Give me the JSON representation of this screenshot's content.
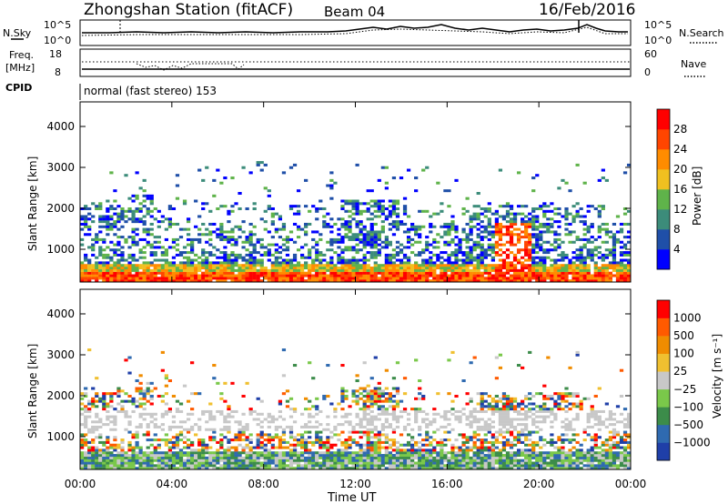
{
  "header": {
    "title": "Zhongshan Station (fitACF)",
    "beam": "Beam 04",
    "date": "16/Feb/2016"
  },
  "noise_panel": {
    "left_label": "N.Sky",
    "right_label": "N.Search",
    "y_ticks_left": [
      "10^5",
      "10^0"
    ],
    "y_ticks_right": [
      "10^5",
      "10^0"
    ]
  },
  "freq_panel": {
    "left_label_top": "Freq.",
    "left_label_unit": "[MHz]",
    "right_label": "Nave",
    "left_ticks": [
      "18",
      "8"
    ],
    "right_ticks": [
      "60",
      "0"
    ],
    "cpid_label": "CPID"
  },
  "cpid_text": "normal (fast stereo) 153",
  "colors": {
    "power": [
      "#0000ff",
      "#1f4fa8",
      "#3c8c7a",
      "#5fb34a",
      "#f0c020",
      "#ff8c00",
      "#ff4500",
      "#ff0000"
    ],
    "velocity": [
      "#1f3fa8",
      "#2f6ab0",
      "#3c8c4a",
      "#7ac84a",
      "#c8c8c8",
      "#f0c030",
      "#f08c00",
      "#ff5a00",
      "#ff0000"
    ]
  },
  "chart_data": [
    {
      "type": "heatmap",
      "title": "",
      "xlabel": "",
      "ylabel": "Slant Range [km]",
      "x_ticks": [
        "00:00",
        "04:00",
        "08:00",
        "12:00",
        "16:00",
        "20:00",
        "00:00"
      ],
      "y_ticks": [
        1000,
        2000,
        3000,
        4000
      ],
      "ylim": [
        200,
        4600
      ],
      "colorbar": {
        "label": "Power [dB]",
        "ticks": [
          4,
          8,
          12,
          16,
          20,
          24,
          28
        ],
        "range": [
          0,
          32
        ]
      }
    },
    {
      "type": "heatmap",
      "title": "",
      "xlabel": "Time UT",
      "ylabel": "Slant Range [km]",
      "x_ticks": [
        "00:00",
        "04:00",
        "08:00",
        "12:00",
        "16:00",
        "20:00",
        "00:00"
      ],
      "y_ticks": [
        1000,
        2000,
        3000,
        4000
      ],
      "ylim": [
        200,
        4600
      ],
      "colorbar": {
        "label": "Velocity [m s⁻¹]",
        "ticks": [
          "1000",
          "500",
          "100",
          "25",
          "−25",
          "−100",
          "−500",
          "−1000"
        ]
      }
    }
  ]
}
